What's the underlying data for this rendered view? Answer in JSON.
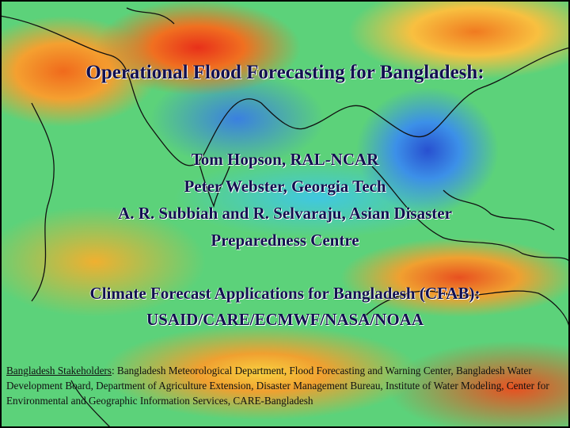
{
  "title": "Operational Flood Forecasting for Bangladesh:",
  "authors": [
    "Tom Hopson, RAL-NCAR",
    "Peter Webster, Georgia Tech",
    "A. R. Subbiah and R. Selvaraju, Asian Disaster",
    "Preparedness Centre"
  ],
  "program": [
    "Climate Forecast Applications for Bangladesh (CFAB):",
    "USAID/CARE/ECMWF/NASA/NOAA"
  ],
  "stakeholders": {
    "label": "Bangladesh Stakeholders",
    "text": ": Bangladesh Meteorological Department, Flood Forecasting and Warning Center, Bangladesh Water Development Board, Department of Agriculture Extension, Disaster Management Bureau, Institute of Water Modeling, Center for Environmental and Geographic Information Services, CARE-Bangladesh"
  }
}
